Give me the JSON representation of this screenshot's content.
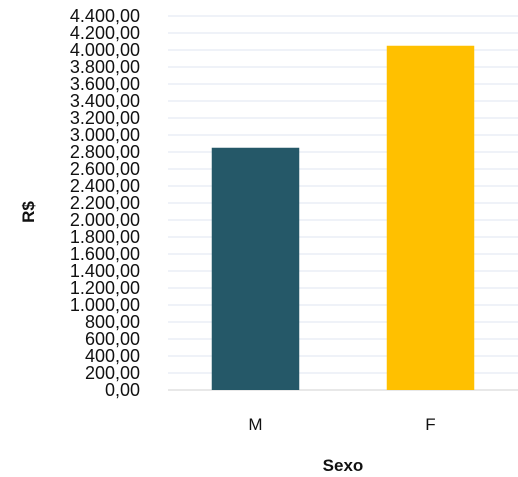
{
  "chart_data": {
    "type": "bar",
    "categories": [
      "M",
      "F"
    ],
    "values": [
      2850,
      4050
    ],
    "colors": [
      "#255868",
      "#ffc000"
    ],
    "title": "",
    "xlabel": "Sexo",
    "ylabel": "R$",
    "ylim": [
      0,
      4400
    ],
    "y_tick_step": 200,
    "y_ticks": [
      "0,00",
      "200,00",
      "400,00",
      "600,00",
      "800,00",
      "1.000,00",
      "1.200,00",
      "1.400,00",
      "1.600,00",
      "1.800,00",
      "2.000,00",
      "2.200,00",
      "2.400,00",
      "2.600,00",
      "2.800,00",
      "3.000,00",
      "3.200,00",
      "3.400,00",
      "3.600,00",
      "3.800,00",
      "4.000,00",
      "4.200,00",
      "4.400,00"
    ],
    "grid": true,
    "legend": "none"
  }
}
